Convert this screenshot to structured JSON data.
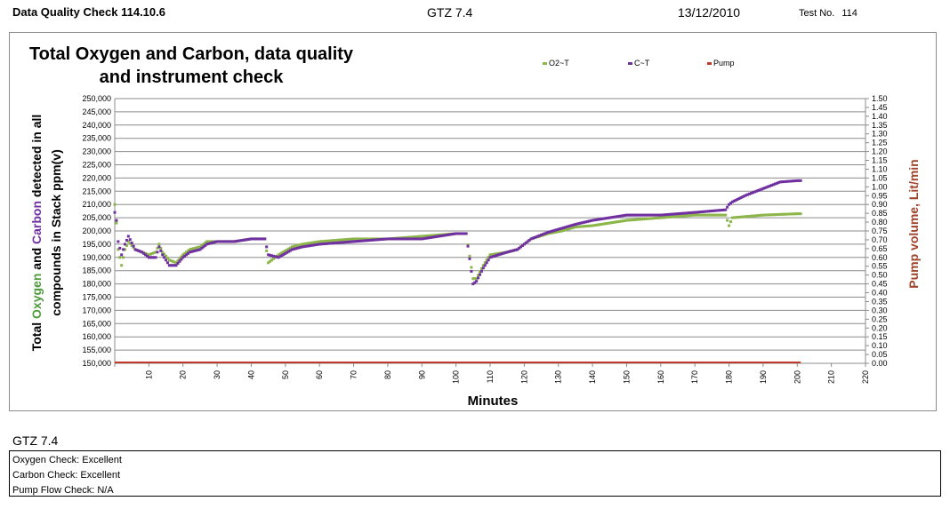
{
  "header": {
    "report_title": "Data Quality Check 114.10.6",
    "model": "GTZ 7.4",
    "date": "13/12/2010",
    "test_label": "Test No.",
    "test_number": "114"
  },
  "footer": {
    "model": "GTZ 7.4",
    "checks": [
      "Oxygen Check: Excellent",
      "Carbon Check: Excellent",
      "Pump Flow Check: N/A"
    ]
  },
  "colors": {
    "oxygen": "#8db64a",
    "carbon": "#7030a0",
    "pump": "#c0392b",
    "grid": "#8c8c8c"
  },
  "chart_data": {
    "type": "scatter",
    "title_lines": [
      "Total Oxygen and Carbon, data quality",
      "and instrument check"
    ],
    "xlabel": "Minutes",
    "ylabel_lines": [
      [
        {
          "t": "Total ",
          "c": "#000000"
        },
        {
          "t": "Oxygen",
          "c": "#4f9a3c"
        },
        {
          "t": " and ",
          "c": "#000000"
        },
        {
          "t": "Carbon",
          "c": "#7030a0"
        },
        {
          "t": " detected in all",
          "c": "#000000"
        }
      ],
      [
        {
          "t": "compounds in Stack ppm(v)",
          "c": "#000000"
        }
      ]
    ],
    "y2label": "Pump volume, Lit/min",
    "xlim": [
      0,
      220
    ],
    "ylim": [
      150000,
      250000
    ],
    "y2lim": [
      0,
      1.5
    ],
    "xticks": [
      10,
      20,
      30,
      40,
      50,
      60,
      70,
      80,
      90,
      100,
      110,
      120,
      130,
      140,
      150,
      160,
      170,
      180,
      190,
      200,
      210,
      220
    ],
    "yticks": [
      "150,000",
      "155,000",
      "160,000",
      "165,000",
      "170,000",
      "175,000",
      "180,000",
      "185,000",
      "190,000",
      "195,000",
      "200,000",
      "205,000",
      "210,000",
      "215,000",
      "220,000",
      "225,000",
      "230,000",
      "235,000",
      "240,000",
      "245,000",
      "250,000"
    ],
    "y2ticks": [
      "0.00",
      "0.05",
      "0.10",
      "0.15",
      "0.20",
      "0.25",
      "0.30",
      "0.35",
      "0.40",
      "0.45",
      "0.50",
      "0.55",
      "0.60",
      "0.65",
      "0.70",
      "0.75",
      "0.80",
      "0.85",
      "0.90",
      "0.95",
      "1.00",
      "1.05",
      "1.10",
      "1.15",
      "1.20",
      "1.25",
      "1.30",
      "1.35",
      "1.40",
      "1.45",
      "1.50"
    ],
    "legend": [
      "O2~T",
      "C~T",
      "Pump"
    ],
    "series": [
      {
        "name": "O2~T",
        "axis": "left",
        "x": [
          0,
          0.5,
          1,
          2,
          3,
          4,
          6,
          8,
          10,
          12,
          13,
          14,
          16,
          18,
          20,
          22,
          25,
          27,
          30,
          35,
          40,
          42,
          44,
          45,
          48,
          52,
          55,
          60,
          70,
          80,
          90,
          100,
          103,
          105,
          106,
          108,
          110,
          115,
          118,
          122,
          127,
          131,
          135,
          140,
          150,
          160,
          170,
          179,
          180,
          181,
          190,
          200,
          201
        ],
        "y": [
          210000,
          203000,
          193000,
          187000,
          193000,
          196000,
          193000,
          192000,
          191000,
          192000,
          195000,
          192000,
          189000,
          188000,
          191000,
          193000,
          194000,
          196000,
          196000,
          196000,
          197000,
          197000,
          197000,
          188000,
          191000,
          194000,
          195000,
          196000,
          197000,
          197000,
          198000,
          199000,
          199000,
          182000,
          182000,
          187000,
          191000,
          192000,
          193000,
          197000,
          199000,
          200000,
          201500,
          202000,
          204000,
          205000,
          206000,
          206000,
          202000,
          205000,
          206000,
          206500,
          206500
        ]
      },
      {
        "name": "C~T",
        "axis": "left",
        "x": [
          0,
          0.5,
          1,
          2,
          3,
          4,
          6,
          8,
          10,
          12,
          13,
          14,
          16,
          18,
          20,
          22,
          25,
          27,
          30,
          35,
          40,
          42,
          44,
          45,
          48,
          52,
          55,
          60,
          70,
          80,
          90,
          100,
          103,
          105,
          106,
          108,
          110,
          115,
          118,
          122,
          127,
          131,
          135,
          140,
          150,
          160,
          170,
          179,
          180,
          181,
          185,
          190,
          195,
          200,
          201
        ],
        "y": [
          207000,
          204000,
          196000,
          191000,
          195000,
          198000,
          193000,
          192000,
          190000,
          190000,
          194000,
          191000,
          187000,
          187000,
          190000,
          192000,
          193000,
          195000,
          196000,
          196000,
          197000,
          197000,
          197000,
          191000,
          190000,
          193000,
          194000,
          195000,
          196000,
          197000,
          197000,
          199000,
          199000,
          180000,
          181000,
          186000,
          190000,
          192000,
          193000,
          197000,
          199500,
          201000,
          202500,
          204000,
          206000,
          206000,
          207000,
          208000,
          210000,
          211000,
          213500,
          216000,
          218500,
          219000,
          219000
        ]
      },
      {
        "name": "Pump",
        "axis": "right",
        "x": [
          0,
          201
        ],
        "y": [
          0,
          0
        ]
      }
    ]
  }
}
